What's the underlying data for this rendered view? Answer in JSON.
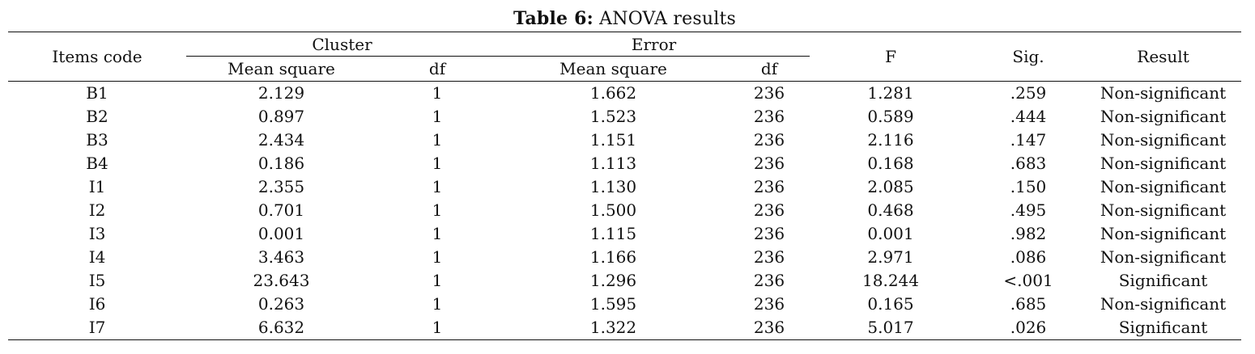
{
  "caption": {
    "label": "Table 6:",
    "title": "ANOVA results"
  },
  "headers": {
    "items_code": "Items code",
    "cluster": "Cluster",
    "error": "Error",
    "cluster_mean_square": "Mean square",
    "cluster_df": "df",
    "error_mean_square": "Mean square",
    "error_df": "df",
    "f": "F",
    "sig": "Sig.",
    "result": "Result"
  },
  "rows": [
    {
      "code": "B1",
      "cluster_ms": "2.129",
      "cluster_df": "1",
      "error_ms": "1.662",
      "error_df": "236",
      "f": "1.281",
      "sig": ".259",
      "result": "Non-significant"
    },
    {
      "code": "B2",
      "cluster_ms": "0.897",
      "cluster_df": "1",
      "error_ms": "1.523",
      "error_df": "236",
      "f": "0.589",
      "sig": ".444",
      "result": "Non-significant"
    },
    {
      "code": "B3",
      "cluster_ms": "2.434",
      "cluster_df": "1",
      "error_ms": "1.151",
      "error_df": "236",
      "f": "2.116",
      "sig": ".147",
      "result": "Non-significant"
    },
    {
      "code": "B4",
      "cluster_ms": "0.186",
      "cluster_df": "1",
      "error_ms": "1.113",
      "error_df": "236",
      "f": "0.168",
      "sig": ".683",
      "result": "Non-significant"
    },
    {
      "code": "I1",
      "cluster_ms": "2.355",
      "cluster_df": "1",
      "error_ms": "1.130",
      "error_df": "236",
      "f": "2.085",
      "sig": ".150",
      "result": "Non-significant"
    },
    {
      "code": "I2",
      "cluster_ms": "0.701",
      "cluster_df": "1",
      "error_ms": "1.500",
      "error_df": "236",
      "f": "0.468",
      "sig": ".495",
      "result": "Non-significant"
    },
    {
      "code": "I3",
      "cluster_ms": "0.001",
      "cluster_df": "1",
      "error_ms": "1.115",
      "error_df": "236",
      "f": "0.001",
      "sig": ".982",
      "result": "Non-significant"
    },
    {
      "code": "I4",
      "cluster_ms": "3.463",
      "cluster_df": "1",
      "error_ms": "1.166",
      "error_df": "236",
      "f": "2.971",
      "sig": ".086",
      "result": "Non-significant"
    },
    {
      "code": "I5",
      "cluster_ms": "23.643",
      "cluster_df": "1",
      "error_ms": "1.296",
      "error_df": "236",
      "f": "18.244",
      "sig": "<.001",
      "result": "Significant"
    },
    {
      "code": "I6",
      "cluster_ms": "0.263",
      "cluster_df": "1",
      "error_ms": "1.595",
      "error_df": "236",
      "f": "0.165",
      "sig": ".685",
      "result": "Non-significant"
    },
    {
      "code": "I7",
      "cluster_ms": "6.632",
      "cluster_df": "1",
      "error_ms": "1.322",
      "error_df": "236",
      "f": "5.017",
      "sig": ".026",
      "result": "Significant"
    }
  ]
}
